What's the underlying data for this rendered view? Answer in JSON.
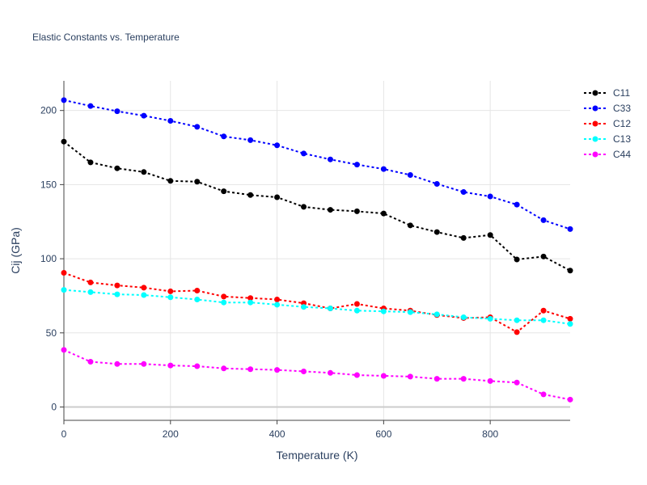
{
  "chart_data": {
    "type": "line",
    "title": "Elastic Constants vs. Temperature",
    "xlabel": "Temperature (K)",
    "ylabel": "Cij (GPa)",
    "xlim": [
      0,
      950
    ],
    "ylim": [
      -9,
      220
    ],
    "x_ticks": [
      0,
      200,
      400,
      600,
      800
    ],
    "y_ticks": [
      0,
      50,
      100,
      150,
      200
    ],
    "grid": true,
    "legend_position": "top-right",
    "x": [
      0,
      50,
      100,
      150,
      200,
      250,
      300,
      350,
      400,
      450,
      500,
      550,
      600,
      650,
      700,
      750,
      800,
      850,
      900,
      950
    ],
    "series": [
      {
        "name": "C11",
        "color": "#000000",
        "values": [
          179,
          165,
          161,
          158.5,
          152.5,
          152,
          145.5,
          143,
          141.5,
          135,
          133,
          132,
          130.5,
          122.5,
          118,
          114,
          116,
          99.5,
          101.5,
          92
        ]
      },
      {
        "name": "C33",
        "color": "#0000ff",
        "values": [
          207,
          203,
          199.5,
          196.5,
          193,
          189,
          182.5,
          180,
          176.5,
          171,
          167,
          163.5,
          160.5,
          156.5,
          150.5,
          145,
          142,
          136.5,
          126,
          120
        ]
      },
      {
        "name": "C12",
        "color": "#ff0000",
        "values": [
          90.5,
          84,
          82,
          80.5,
          78,
          78.5,
          74.5,
          73.5,
          72.5,
          70,
          66.5,
          69.5,
          66.5,
          65,
          62,
          60,
          60.5,
          50.5,
          65,
          59.5
        ]
      },
      {
        "name": "C13",
        "color": "#00ffff",
        "values": [
          79,
          77.5,
          76,
          75.5,
          74,
          72.5,
          70.5,
          70.5,
          69,
          67.5,
          66.5,
          65,
          64.5,
          64,
          62.5,
          60.5,
          59.5,
          58.5,
          58.5,
          56
        ]
      },
      {
        "name": "C44",
        "color": "#ff00ff",
        "values": [
          38.5,
          30.5,
          29,
          29,
          28,
          27.5,
          26,
          25.5,
          25,
          24,
          23,
          21.5,
          21,
          20.5,
          19,
          19,
          17.5,
          16.5,
          8.5,
          5
        ]
      }
    ]
  }
}
